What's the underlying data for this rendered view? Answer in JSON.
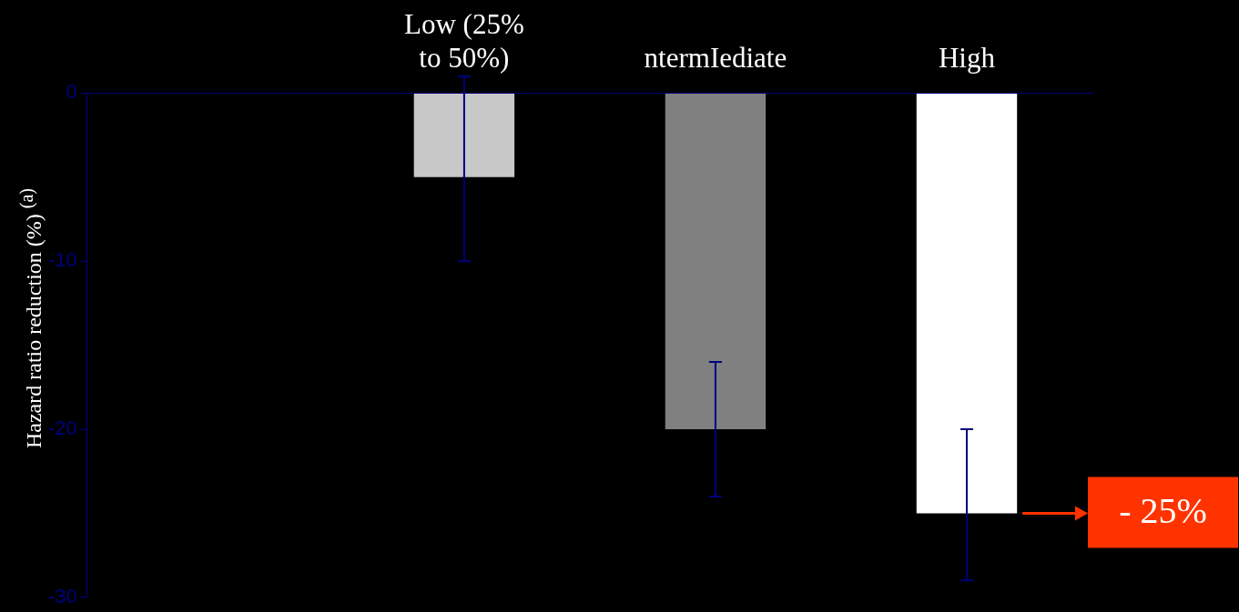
{
  "chart_data": {
    "type": "bar",
    "categories": [
      null,
      "Low (25% to 50%)",
      "ntermIediate",
      "High"
    ],
    "values": [
      0,
      -5,
      -20,
      -25
    ],
    "colors": [
      "#d0d0d0",
      "#c8c8c8",
      "#808080",
      "#ffffff"
    ],
    "errors": [
      null,
      [
        -10,
        1
      ],
      [
        -24,
        -16
      ],
      [
        -29,
        -20
      ]
    ],
    "ylabel": "Hazard ratio reduction (%) $^{(a)}$",
    "ylim": [
      -30,
      0
    ],
    "yticks": [
      0,
      -10,
      -20,
      -30
    ],
    "annotations": [
      "- 25%"
    ],
    "grid": false,
    "legend": false
  }
}
